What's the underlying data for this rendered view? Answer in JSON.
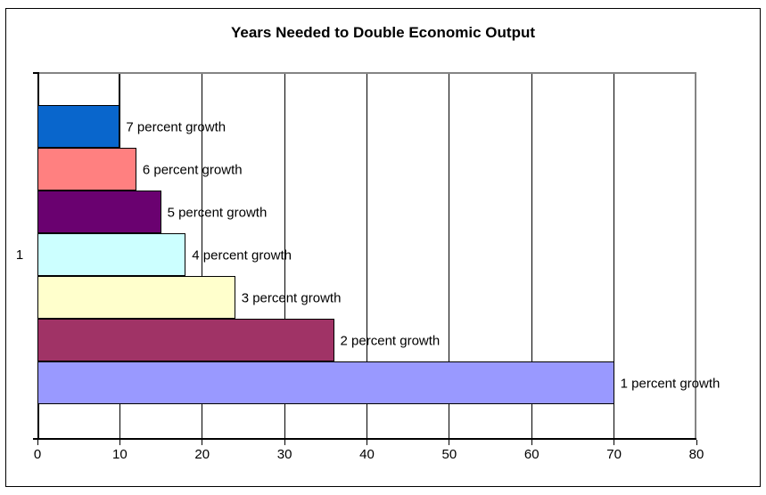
{
  "chart_data": {
    "type": "bar",
    "orientation": "horizontal",
    "title": "Years Needed to Double Economic Output",
    "category_label": "1",
    "xlim": [
      0,
      80
    ],
    "x_ticks": [
      0,
      10,
      20,
      30,
      40,
      50,
      60,
      70,
      80
    ],
    "grid": true,
    "legend": "none",
    "bar_labels_visible": true,
    "series": [
      {
        "name": "7 percent growth",
        "value": 10,
        "color": "#0966CC"
      },
      {
        "name": "6 percent growth",
        "value": 12,
        "color": "#FF8080"
      },
      {
        "name": "5 percent growth",
        "value": 15,
        "color": "#6A0170"
      },
      {
        "name": "4 percent growth",
        "value": 18,
        "color": "#CCFFFF"
      },
      {
        "name": "3 percent growth",
        "value": 24,
        "color": "#FFFFCC"
      },
      {
        "name": "2 percent growth",
        "value": 36,
        "color": "#A03366"
      },
      {
        "name": "1 percent growth",
        "value": 70,
        "color": "#9999FF"
      }
    ],
    "colors": {
      "background": "#FFFFFF",
      "gridline": "#000000",
      "plot_border": "#848484",
      "axis": "#000000",
      "bar_border": "#000000",
      "text": "#000000"
    }
  }
}
